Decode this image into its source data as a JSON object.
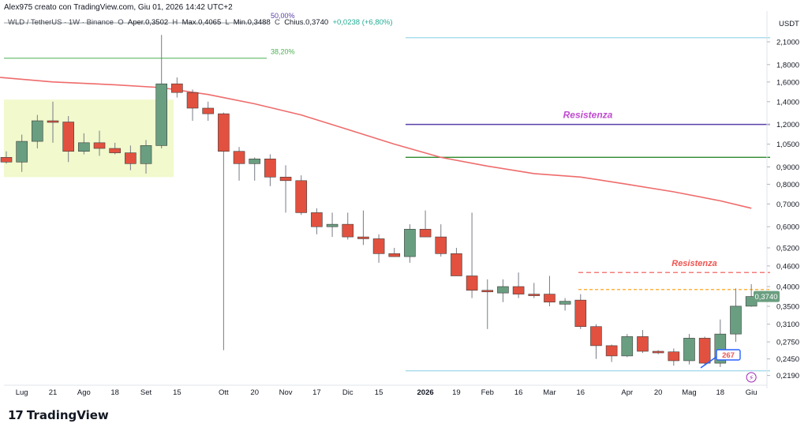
{
  "header": {
    "author_line": "Alex975 creato con TradingView.com, Giu 01, 2026 14:42 UTC+2",
    "symbol": "WLD / TetherUS · 1W · Binance",
    "open_label": "O",
    "open_text": "Aper.0,3502",
    "high_label": "H",
    "high_text": "Max.0,4065",
    "low_label": "L",
    "low_text": "Min.0,3488",
    "close_label": "C",
    "close_text": "Chius.0,3740",
    "change": "+0,0238 (+6,80%)"
  },
  "branding": {
    "logo": "17",
    "name": "TradingView"
  },
  "colors": {
    "up": "#6a9e80",
    "down": "#e2513f",
    "ma": "#ef6b6b",
    "resistance_purple": "#5a3fa8",
    "resistance_label": "#c04bd0",
    "support_green": "#2e8a2e",
    "fib_line": "#4caf50",
    "cyan": "#9ed7e8",
    "red_dash": "#ef5350",
    "orange_dash": "#ff9800",
    "price_tag": "#6a9e80",
    "zone_fill": "#f0f8c8"
  },
  "chart_data": {
    "type": "candlestick",
    "scale": "log",
    "currency": "USDT",
    "ylim": [
      0.205,
      2.3
    ],
    "price_ticks": [
      "2,1000",
      "1,8000",
      "1,6000",
      "1,4000",
      "1,2000",
      "1,0500",
      "0,9000",
      "0,8000",
      "0,7000",
      "0,6000",
      "0,5200",
      "0,4600",
      "0,4000",
      "0,3500",
      "0,3100",
      "0,2750",
      "0,2450",
      "0,2190"
    ],
    "price_tick_values": [
      2.1,
      1.8,
      1.6,
      1.4,
      1.2,
      1.05,
      0.9,
      0.8,
      0.7,
      0.6,
      0.52,
      0.46,
      0.4,
      0.35,
      0.31,
      0.275,
      0.245,
      0.219
    ],
    "time_labels": [
      {
        "label": "Lug",
        "i": 1
      },
      {
        "label": "21",
        "i": 3
      },
      {
        "label": "Ago",
        "i": 5
      },
      {
        "label": "18",
        "i": 7
      },
      {
        "label": "Set",
        "i": 9
      },
      {
        "label": "15",
        "i": 11
      },
      {
        "label": "Ott",
        "i": 14
      },
      {
        "label": "20",
        "i": 16
      },
      {
        "label": "Nov",
        "i": 18
      },
      {
        "label": "17",
        "i": 20
      },
      {
        "label": "Dic",
        "i": 22
      },
      {
        "label": "15",
        "i": 24
      },
      {
        "label": "2026",
        "i": 27,
        "bold": true
      },
      {
        "label": "19",
        "i": 29
      },
      {
        "label": "Feb",
        "i": 31
      },
      {
        "label": "16",
        "i": 33
      },
      {
        "label": "Mar",
        "i": 35
      },
      {
        "label": "16",
        "i": 37
      },
      {
        "label": "Apr",
        "i": 40
      },
      {
        "label": "20",
        "i": 42
      },
      {
        "label": "Mag",
        "i": 44
      },
      {
        "label": "18",
        "i": 46
      },
      {
        "label": "Giu",
        "i": 48
      }
    ],
    "candles": [
      {
        "o": 0.96,
        "h": 1.0,
        "l": 0.92,
        "c": 0.93
      },
      {
        "o": 0.93,
        "h": 1.12,
        "l": 0.87,
        "c": 1.07
      },
      {
        "o": 1.07,
        "h": 1.28,
        "l": 1.02,
        "c": 1.23
      },
      {
        "o": 1.23,
        "h": 1.4,
        "l": 1.06,
        "c": 1.22
      },
      {
        "o": 1.22,
        "h": 1.27,
        "l": 0.93,
        "c": 1.0
      },
      {
        "o": 1.0,
        "h": 1.13,
        "l": 0.98,
        "c": 1.06
      },
      {
        "o": 1.06,
        "h": 1.15,
        "l": 0.97,
        "c": 1.02
      },
      {
        "o": 1.02,
        "h": 1.06,
        "l": 0.98,
        "c": 0.99
      },
      {
        "o": 0.99,
        "h": 1.04,
        "l": 0.88,
        "c": 0.92
      },
      {
        "o": 0.92,
        "h": 1.08,
        "l": 0.86,
        "c": 1.04
      },
      {
        "o": 1.04,
        "h": 2.2,
        "l": 1.02,
        "c": 1.58
      },
      {
        "o": 1.58,
        "h": 1.65,
        "l": 1.44,
        "c": 1.49
      },
      {
        "o": 1.49,
        "h": 1.52,
        "l": 1.23,
        "c": 1.34
      },
      {
        "o": 1.34,
        "h": 1.4,
        "l": 1.23,
        "c": 1.29
      },
      {
        "o": 1.29,
        "h": 1.3,
        "l": 0.26,
        "c": 1.0
      },
      {
        "o": 1.0,
        "h": 1.03,
        "l": 0.82,
        "c": 0.92
      },
      {
        "o": 0.92,
        "h": 0.96,
        "l": 0.82,
        "c": 0.95
      },
      {
        "o": 0.95,
        "h": 0.98,
        "l": 0.79,
        "c": 0.84
      },
      {
        "o": 0.84,
        "h": 0.91,
        "l": 0.66,
        "c": 0.82
      },
      {
        "o": 0.82,
        "h": 0.85,
        "l": 0.65,
        "c": 0.66
      },
      {
        "o": 0.66,
        "h": 0.68,
        "l": 0.57,
        "c": 0.6
      },
      {
        "o": 0.6,
        "h": 0.66,
        "l": 0.56,
        "c": 0.61
      },
      {
        "o": 0.61,
        "h": 0.66,
        "l": 0.55,
        "c": 0.56
      },
      {
        "o": 0.56,
        "h": 0.67,
        "l": 0.53,
        "c": 0.553
      },
      {
        "o": 0.553,
        "h": 0.57,
        "l": 0.47,
        "c": 0.5
      },
      {
        "o": 0.5,
        "h": 0.52,
        "l": 0.49,
        "c": 0.49
      },
      {
        "o": 0.49,
        "h": 0.61,
        "l": 0.47,
        "c": 0.59
      },
      {
        "o": 0.59,
        "h": 0.67,
        "l": 0.56,
        "c": 0.56
      },
      {
        "o": 0.56,
        "h": 0.61,
        "l": 0.49,
        "c": 0.5
      },
      {
        "o": 0.5,
        "h": 0.52,
        "l": 0.43,
        "c": 0.43
      },
      {
        "o": 0.43,
        "h": 0.66,
        "l": 0.37,
        "c": 0.39
      },
      {
        "o": 0.39,
        "h": 0.42,
        "l": 0.3,
        "c": 0.387
      },
      {
        "o": 0.383,
        "h": 0.42,
        "l": 0.36,
        "c": 0.4
      },
      {
        "o": 0.4,
        "h": 0.44,
        "l": 0.37,
        "c": 0.38
      },
      {
        "o": 0.38,
        "h": 0.41,
        "l": 0.37,
        "c": 0.379
      },
      {
        "o": 0.38,
        "h": 0.43,
        "l": 0.35,
        "c": 0.36
      },
      {
        "o": 0.355,
        "h": 0.37,
        "l": 0.34,
        "c": 0.362
      },
      {
        "o": 0.365,
        "h": 0.38,
        "l": 0.3,
        "c": 0.305
      },
      {
        "o": 0.305,
        "h": 0.31,
        "l": 0.245,
        "c": 0.268
      },
      {
        "o": 0.268,
        "h": 0.27,
        "l": 0.24,
        "c": 0.25
      },
      {
        "o": 0.25,
        "h": 0.29,
        "l": 0.248,
        "c": 0.285
      },
      {
        "o": 0.285,
        "h": 0.298,
        "l": 0.255,
        "c": 0.258
      },
      {
        "o": 0.258,
        "h": 0.26,
        "l": 0.253,
        "c": 0.257
      },
      {
        "o": 0.257,
        "h": 0.263,
        "l": 0.234,
        "c": 0.242
      },
      {
        "o": 0.242,
        "h": 0.29,
        "l": 0.236,
        "c": 0.282
      },
      {
        "o": 0.282,
        "h": 0.285,
        "l": 0.235,
        "c": 0.238
      },
      {
        "o": 0.238,
        "h": 0.32,
        "l": 0.232,
        "c": 0.29
      },
      {
        "o": 0.29,
        "h": 0.395,
        "l": 0.275,
        "c": 0.3502
      },
      {
        "o": 0.3502,
        "h": 0.4065,
        "l": 0.3488,
        "c": 0.374
      }
    ],
    "moving_average": [
      {
        "i": -0.4,
        "v": 1.65
      },
      {
        "i": 3,
        "v": 1.6
      },
      {
        "i": 7,
        "v": 1.57
      },
      {
        "i": 10,
        "v": 1.54
      },
      {
        "i": 13,
        "v": 1.47
      },
      {
        "i": 16,
        "v": 1.38
      },
      {
        "i": 19,
        "v": 1.28
      },
      {
        "i": 22,
        "v": 1.16
      },
      {
        "i": 25,
        "v": 1.05
      },
      {
        "i": 28,
        "v": 0.96
      },
      {
        "i": 31,
        "v": 0.905
      },
      {
        "i": 34,
        "v": 0.86
      },
      {
        "i": 37,
        "v": 0.84
      },
      {
        "i": 40,
        "v": 0.8
      },
      {
        "i": 43,
        "v": 0.76
      },
      {
        "i": 46,
        "v": 0.715
      },
      {
        "i": 48,
        "v": 0.68
      }
    ],
    "lines": {
      "fib_382": {
        "value": 1.88,
        "label": "38,20%"
      },
      "fib_50_label": "50,00%",
      "cyan_top": 2.16,
      "resistance_purple": 1.2,
      "support_green": 0.96,
      "red_dashed": 0.44,
      "orange_dashed": 0.392,
      "cyan_bottom": 0.226
    },
    "annotations": {
      "resistance_upper": "Resistenza",
      "resistance_lower": "Resistenza",
      "price_badge": "0,3740",
      "box_text": "267",
      "event_icon": "lightning-icon"
    }
  }
}
